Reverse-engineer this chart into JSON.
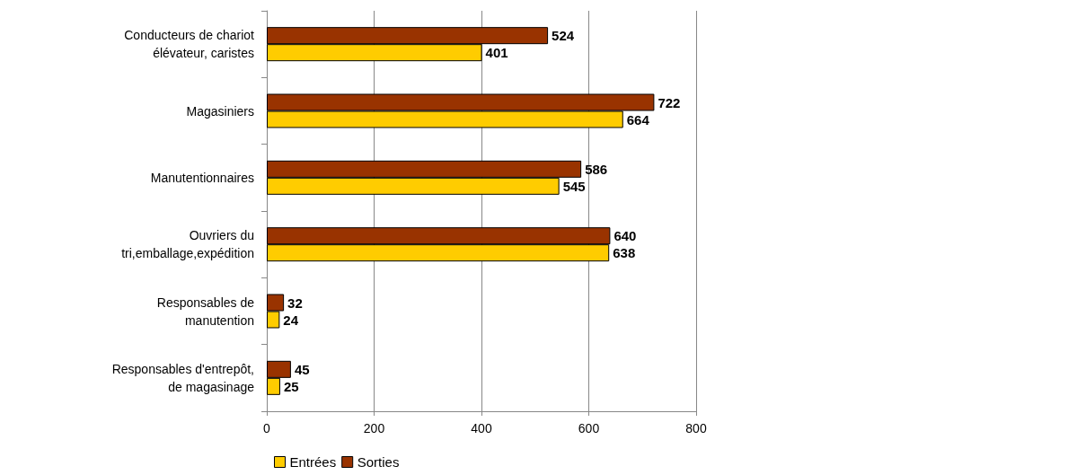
{
  "chart_data": {
    "type": "bar",
    "orientation": "horizontal",
    "categories": [
      "Conducteurs de chariot élévateur, caristes",
      "Magasiniers",
      "Manutentionnaires",
      "Ouvriers du tri,emballage,expédition",
      "Responsables de manutention",
      "Responsables d'entrepôt, de magasinage"
    ],
    "series": [
      {
        "name": "Entrées",
        "color": "#ffcc00",
        "values": [
          401,
          664,
          545,
          638,
          24,
          25
        ]
      },
      {
        "name": "Sorties",
        "color": "#993300",
        "values": [
          524,
          722,
          586,
          640,
          32,
          45
        ]
      }
    ],
    "xlim": [
      0,
      800
    ],
    "xticks": [
      0,
      200,
      400,
      600,
      800
    ],
    "grid": "x",
    "legend": "bottom",
    "data_labels": true
  }
}
